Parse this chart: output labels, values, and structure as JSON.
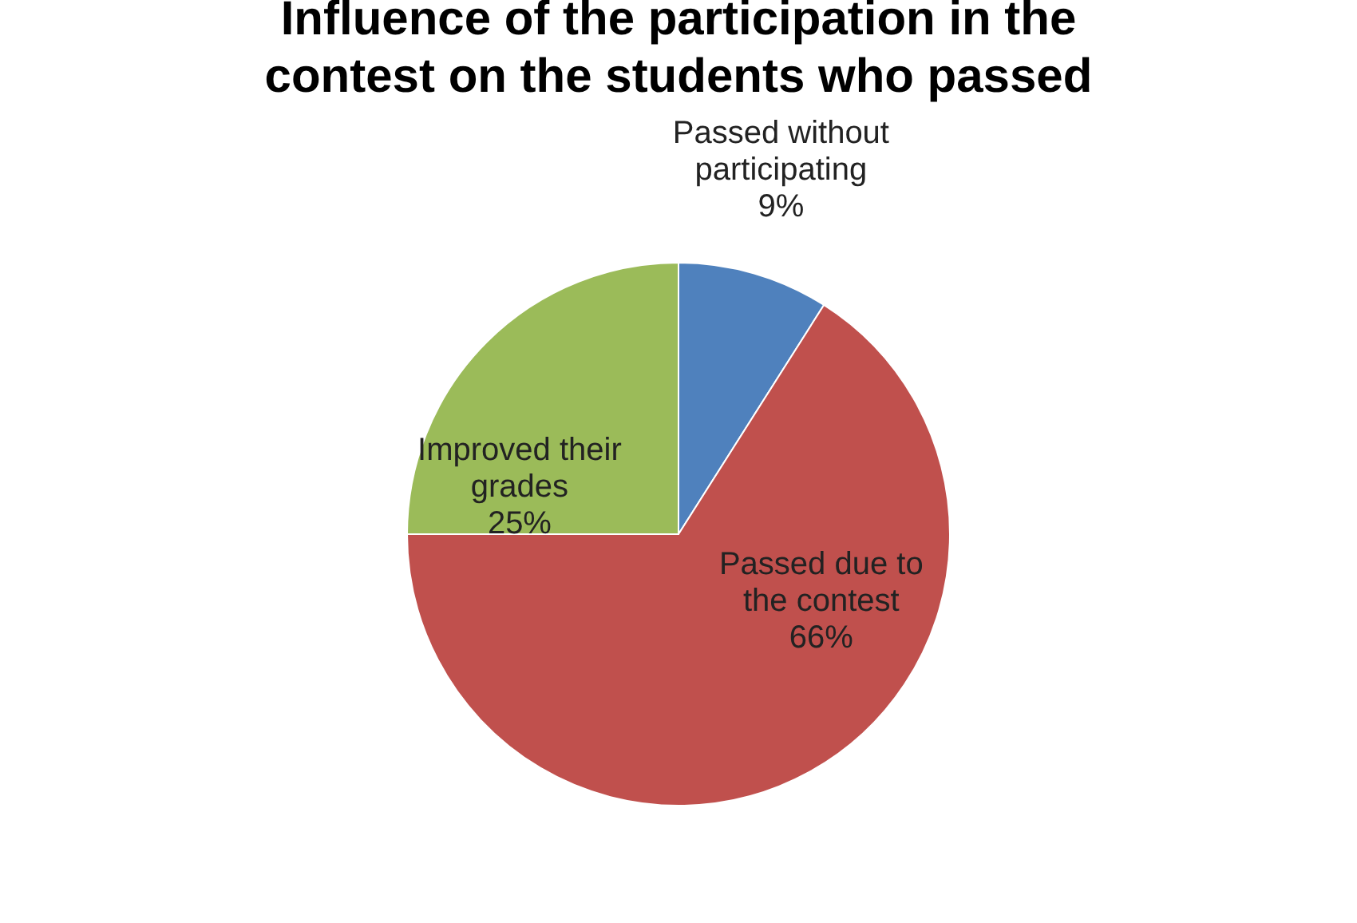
{
  "chart_data": {
    "type": "pie",
    "title": "Influence of the participation in the contest on the students who passed",
    "categories": [
      "Passed without participating",
      "Passed due to the contest",
      "Improved their grades"
    ],
    "values": [
      9,
      66,
      25
    ],
    "value_labels": [
      "9%",
      "66%",
      "25%"
    ],
    "colors": [
      "#4f81bd",
      "#c0504d",
      "#9bbb59"
    ],
    "legend": false
  }
}
